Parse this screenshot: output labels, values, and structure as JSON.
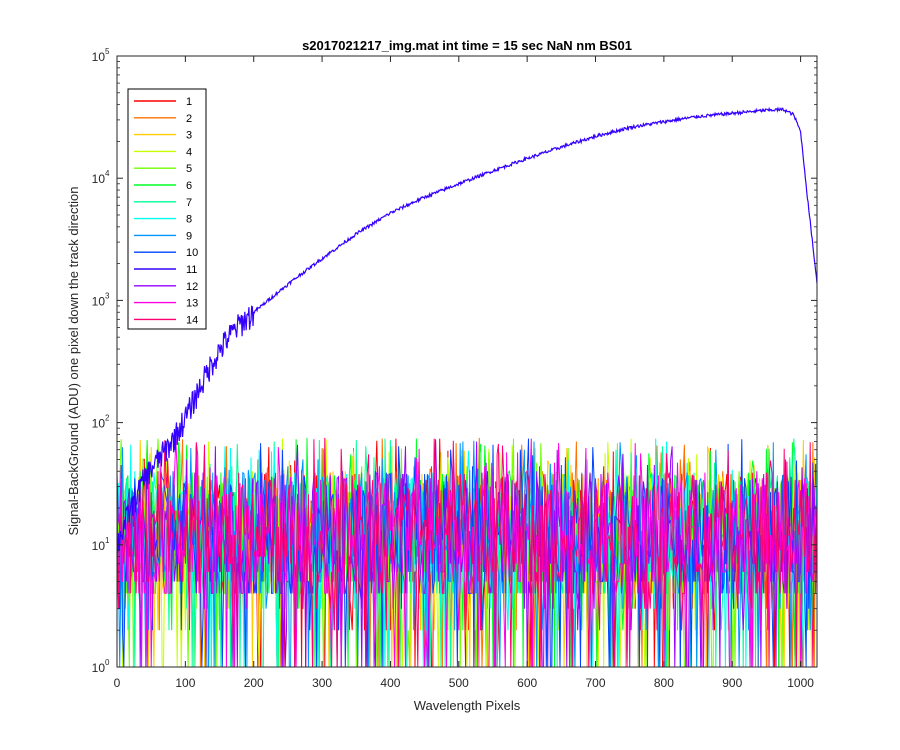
{
  "chart_data": {
    "type": "line",
    "title": "s2017021217_img.mat int time = 15 sec  NaN nm BS01",
    "xlabel": "Wavelength Pixels",
    "ylabel": "Signal-BackGround (ADU) one pixel down the track direction",
    "xlim": [
      0,
      1024
    ],
    "ylim": [
      1,
      100000
    ],
    "yscale": "log",
    "xticks": [
      "0",
      "100",
      "200",
      "300",
      "400",
      "500",
      "600",
      "700",
      "800",
      "900",
      "1000"
    ],
    "yticks": [
      {
        "base": "10",
        "exp": "0"
      },
      {
        "base": "10",
        "exp": "1"
      },
      {
        "base": "10",
        "exp": "2"
      },
      {
        "base": "10",
        "exp": "3"
      },
      {
        "base": "10",
        "exp": "4"
      },
      {
        "base": "10",
        "exp": "5"
      }
    ],
    "grid": false,
    "legend_position": "top-left",
    "series": [
      {
        "name": "1",
        "color": "#ff0000",
        "kind": "noise"
      },
      {
        "name": "2",
        "color": "#ff7300",
        "kind": "noise"
      },
      {
        "name": "3",
        "color": "#ffcc00",
        "kind": "noise"
      },
      {
        "name": "4",
        "color": "#c8ff00",
        "kind": "noise"
      },
      {
        "name": "5",
        "color": "#70ff00",
        "kind": "noise"
      },
      {
        "name": "6",
        "color": "#00ff24",
        "kind": "noise"
      },
      {
        "name": "7",
        "color": "#00ff96",
        "kind": "noise"
      },
      {
        "name": "8",
        "color": "#00fff0",
        "kind": "noise"
      },
      {
        "name": "9",
        "color": "#0096ff",
        "kind": "noise"
      },
      {
        "name": "10",
        "color": "#0044ff",
        "kind": "noise"
      },
      {
        "name": "11",
        "color": "#3300ff",
        "kind": "signal",
        "x": [
          0,
          20,
          40,
          60,
          80,
          100,
          120,
          140,
          160,
          180,
          200,
          230,
          260,
          300,
          350,
          400,
          450,
          500,
          550,
          600,
          650,
          700,
          750,
          800,
          850,
          900,
          950,
          975,
          990,
          1000,
          1010,
          1024
        ],
        "y": [
          10,
          20,
          35,
          50,
          70,
          110,
          190,
          320,
          480,
          650,
          800,
          1100,
          1500,
          2200,
          3500,
          5200,
          7000,
          9000,
          11500,
          14500,
          18000,
          22000,
          26000,
          29000,
          32000,
          34000,
          36000,
          36500,
          33000,
          24000,
          7000,
          1400
        ]
      },
      {
        "name": "12",
        "color": "#9900ff",
        "kind": "noise"
      },
      {
        "name": "13",
        "color": "#ff00e6",
        "kind": "noise"
      },
      {
        "name": "14",
        "color": "#ff0073",
        "kind": "noise"
      }
    ],
    "noise_band": {
      "typical_min": 4,
      "typical_max": 40,
      "floor_values": [
        1,
        2,
        3,
        4
      ],
      "peak": 75
    }
  }
}
